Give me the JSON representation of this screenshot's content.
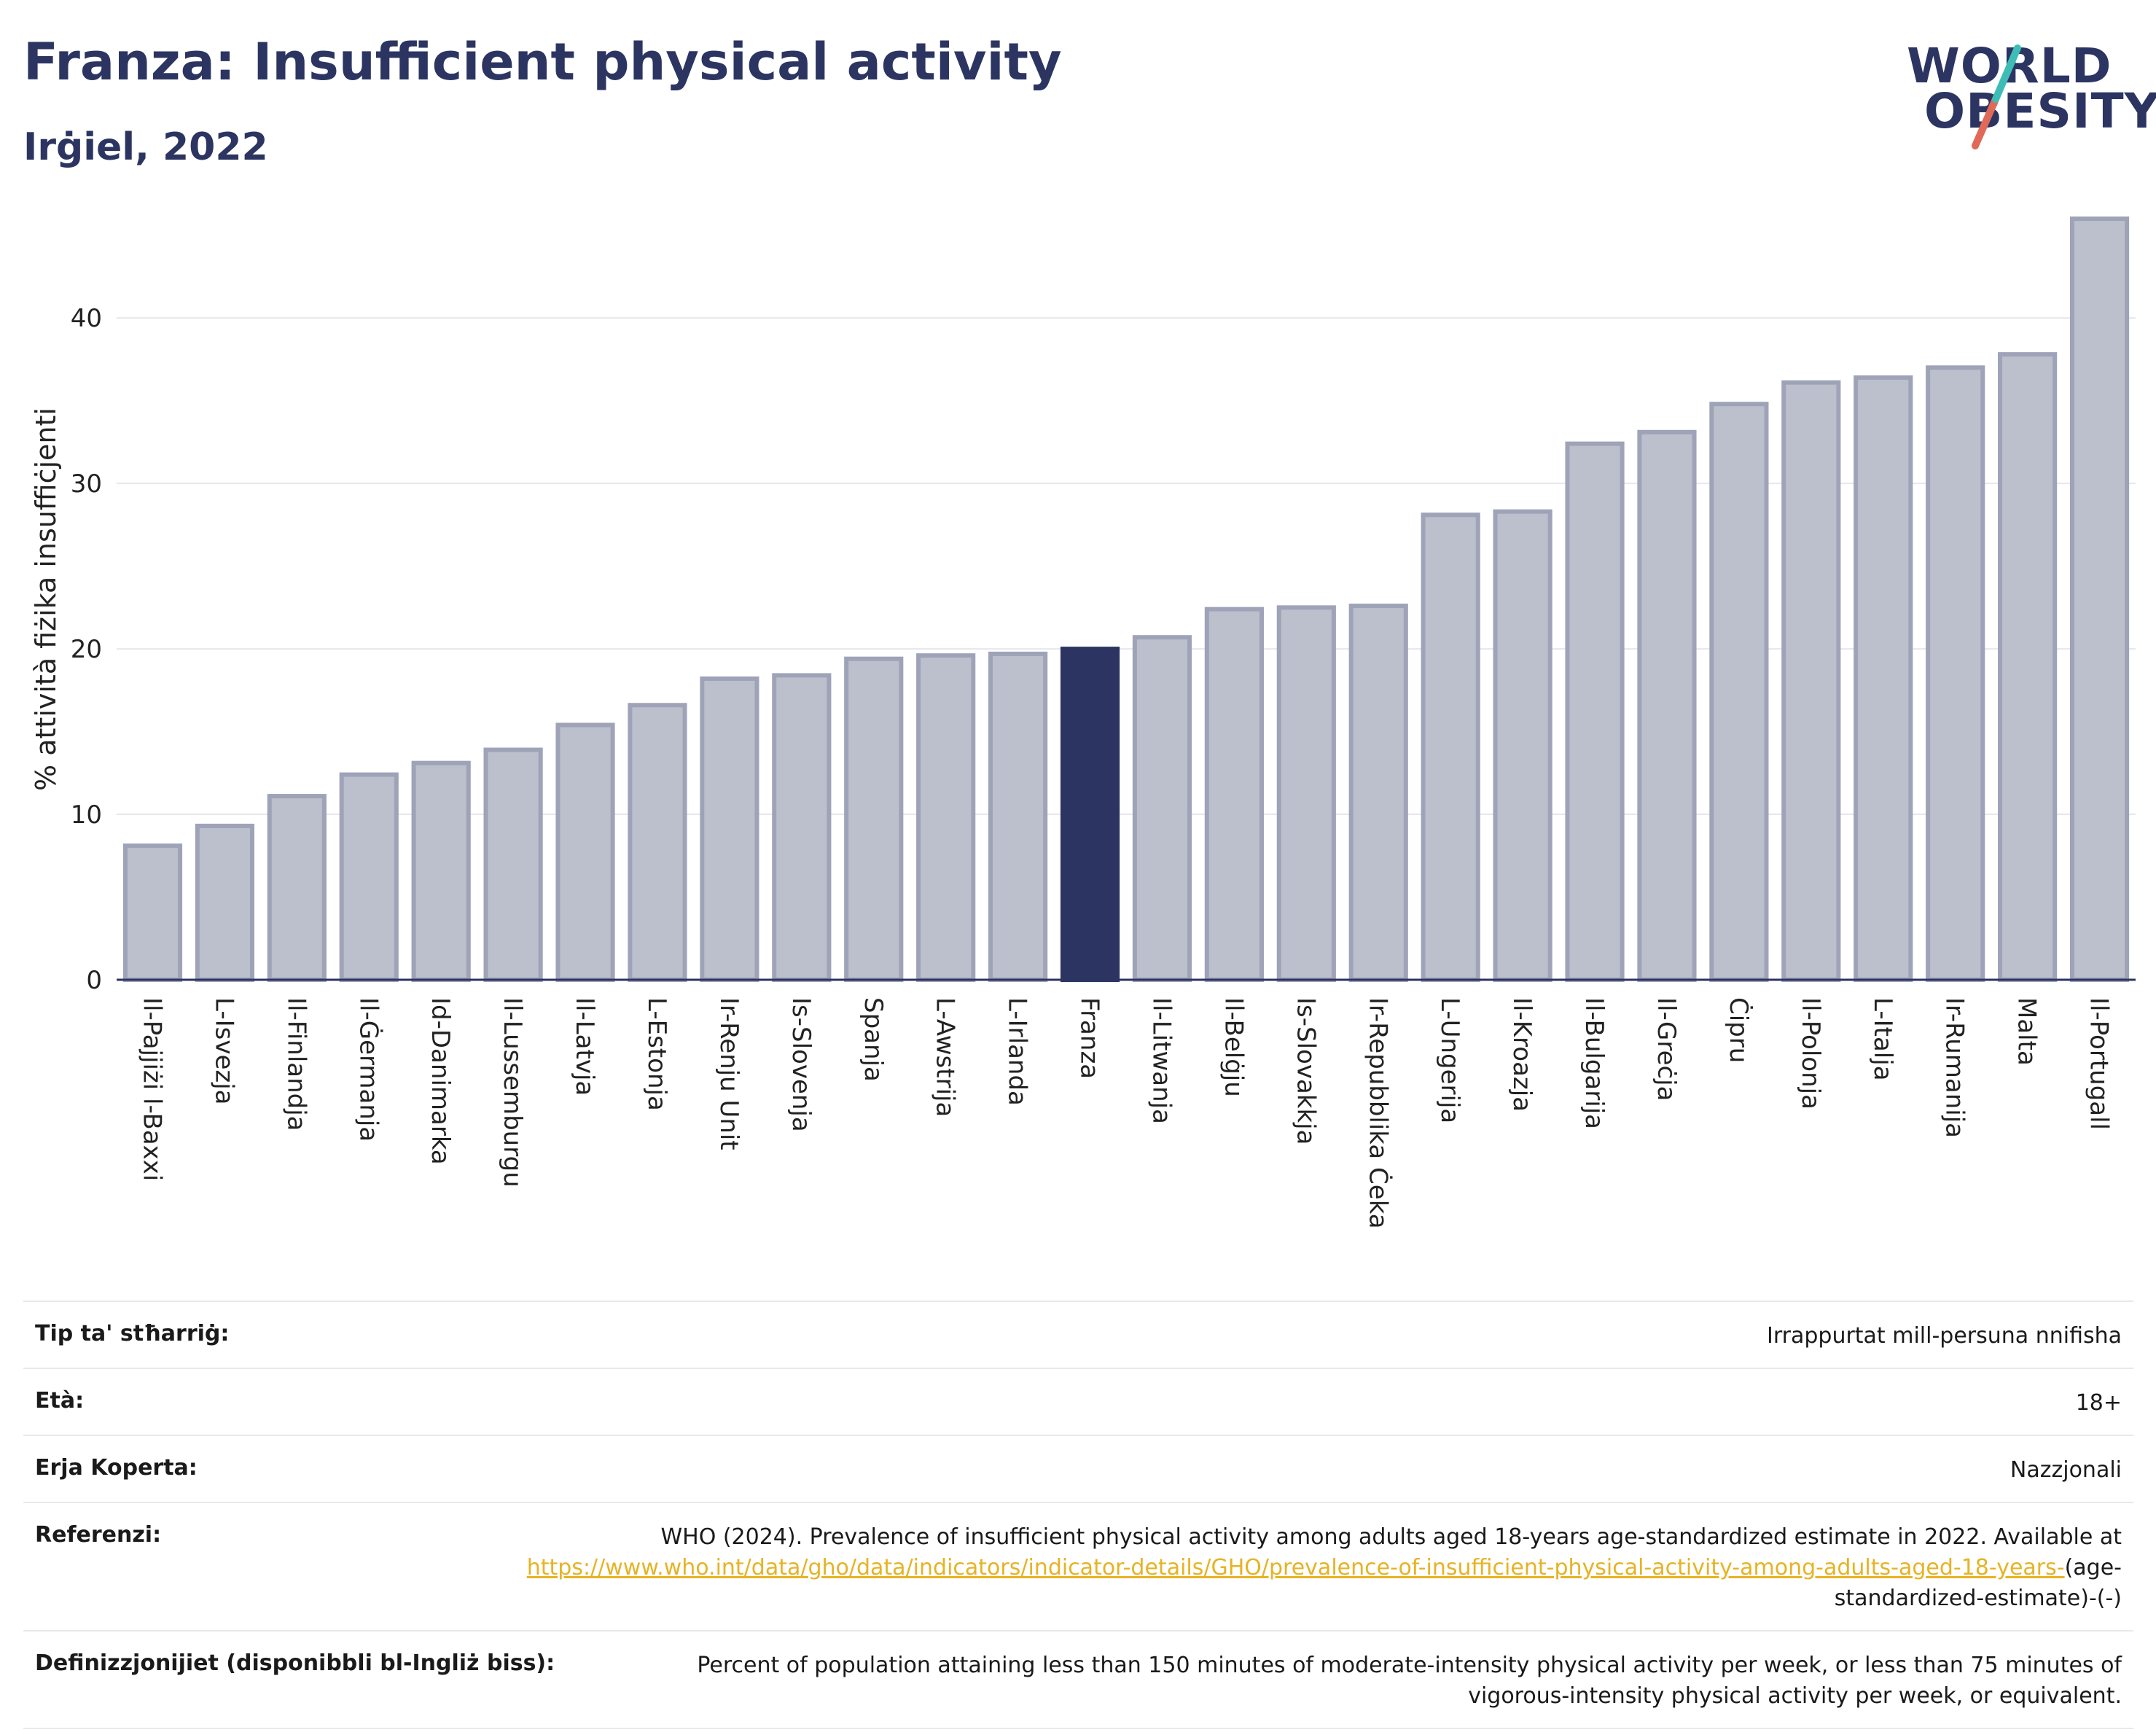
{
  "header": {
    "title": "Franza: Insufficient physical activity",
    "subtitle": "Irġiel, 2022"
  },
  "logo": {
    "line1": "WORLD",
    "line2": "OBESITY"
  },
  "colors": {
    "highlight": "#2c3561",
    "bar_fill": "#bcbfcc",
    "bar_stroke": "#9fa3b8",
    "logo_teal": "#3dbdb6",
    "logo_coral": "#e06a57",
    "link": "#e6b325"
  },
  "chart_data": {
    "type": "bar",
    "title": "Franza: Insufficient physical activity",
    "subtitle": "Irġiel, 2022",
    "ylabel": "% attività fiżika insuffiċjenti",
    "ylim": [
      0,
      46
    ],
    "yticks": [
      0,
      10,
      20,
      30,
      40
    ],
    "grid": true,
    "highlight": "Franza",
    "categories": [
      "Il-Pajjiżi l-Baxxi",
      "L-Isvezja",
      "Il-Finlandja",
      "Il-Ġermanja",
      "Id-Danimarka",
      "Il-Lussemburgu",
      "Il-Latvja",
      "L-Estonja",
      "Ir-Renju Unit",
      "Is-Slovenja",
      "Spanja",
      "L-Awstrija",
      "L-Irlanda",
      "Franza",
      "Il-Litwanja",
      "Il-Belġju",
      "Is-Slovakkja",
      "Ir-Repubblika Ċeka",
      "L-Ungerija",
      "Il-Kroazja",
      "Il-Bulgarija",
      "Il-Greċja",
      "Ċipru",
      "Il-Polonja",
      "L-Italja",
      "Ir-Rumanija",
      "Malta",
      "Il-Portugall"
    ],
    "values": [
      8.1,
      9.3,
      11.1,
      12.4,
      13.1,
      13.9,
      15.4,
      16.6,
      18.2,
      18.4,
      19.4,
      19.6,
      19.7,
      20.0,
      20.7,
      22.4,
      22.5,
      22.6,
      28.1,
      28.3,
      32.4,
      33.1,
      34.8,
      36.1,
      36.4,
      37.0,
      37.8,
      46.0
    ]
  },
  "info": {
    "rows": [
      {
        "label": "Tip ta' stħarriġ:",
        "value": "Irrappurtat mill-persuna nnifisha"
      },
      {
        "label": "Età:",
        "value": "18+"
      },
      {
        "label": "Erja Koperta:",
        "value": "Nazzjonali"
      }
    ],
    "reference": {
      "label": "Referenzi:",
      "text_before": "WHO (2024). Prevalence of insufficient physical activity among adults aged 18-years age-standardized estimate in 2022. Available at",
      "link_text": "https://www.who.int/data/gho/data/indicators/indicator-details/GHO/prevalence-of-insufficient-physical-activity-among-adults-aged-18-years-",
      "text_after": "(age-standardized-estimate)-(-)"
    },
    "definitions": {
      "label": "Definizzjonijiet (disponibbli bl-Ingliż biss):",
      "value": "Percent of population attaining less than 150 minutes of moderate-intensity physical activity per week, or less than 75 minutes of vigorous-intensity physical activity per week, or equivalent."
    }
  }
}
